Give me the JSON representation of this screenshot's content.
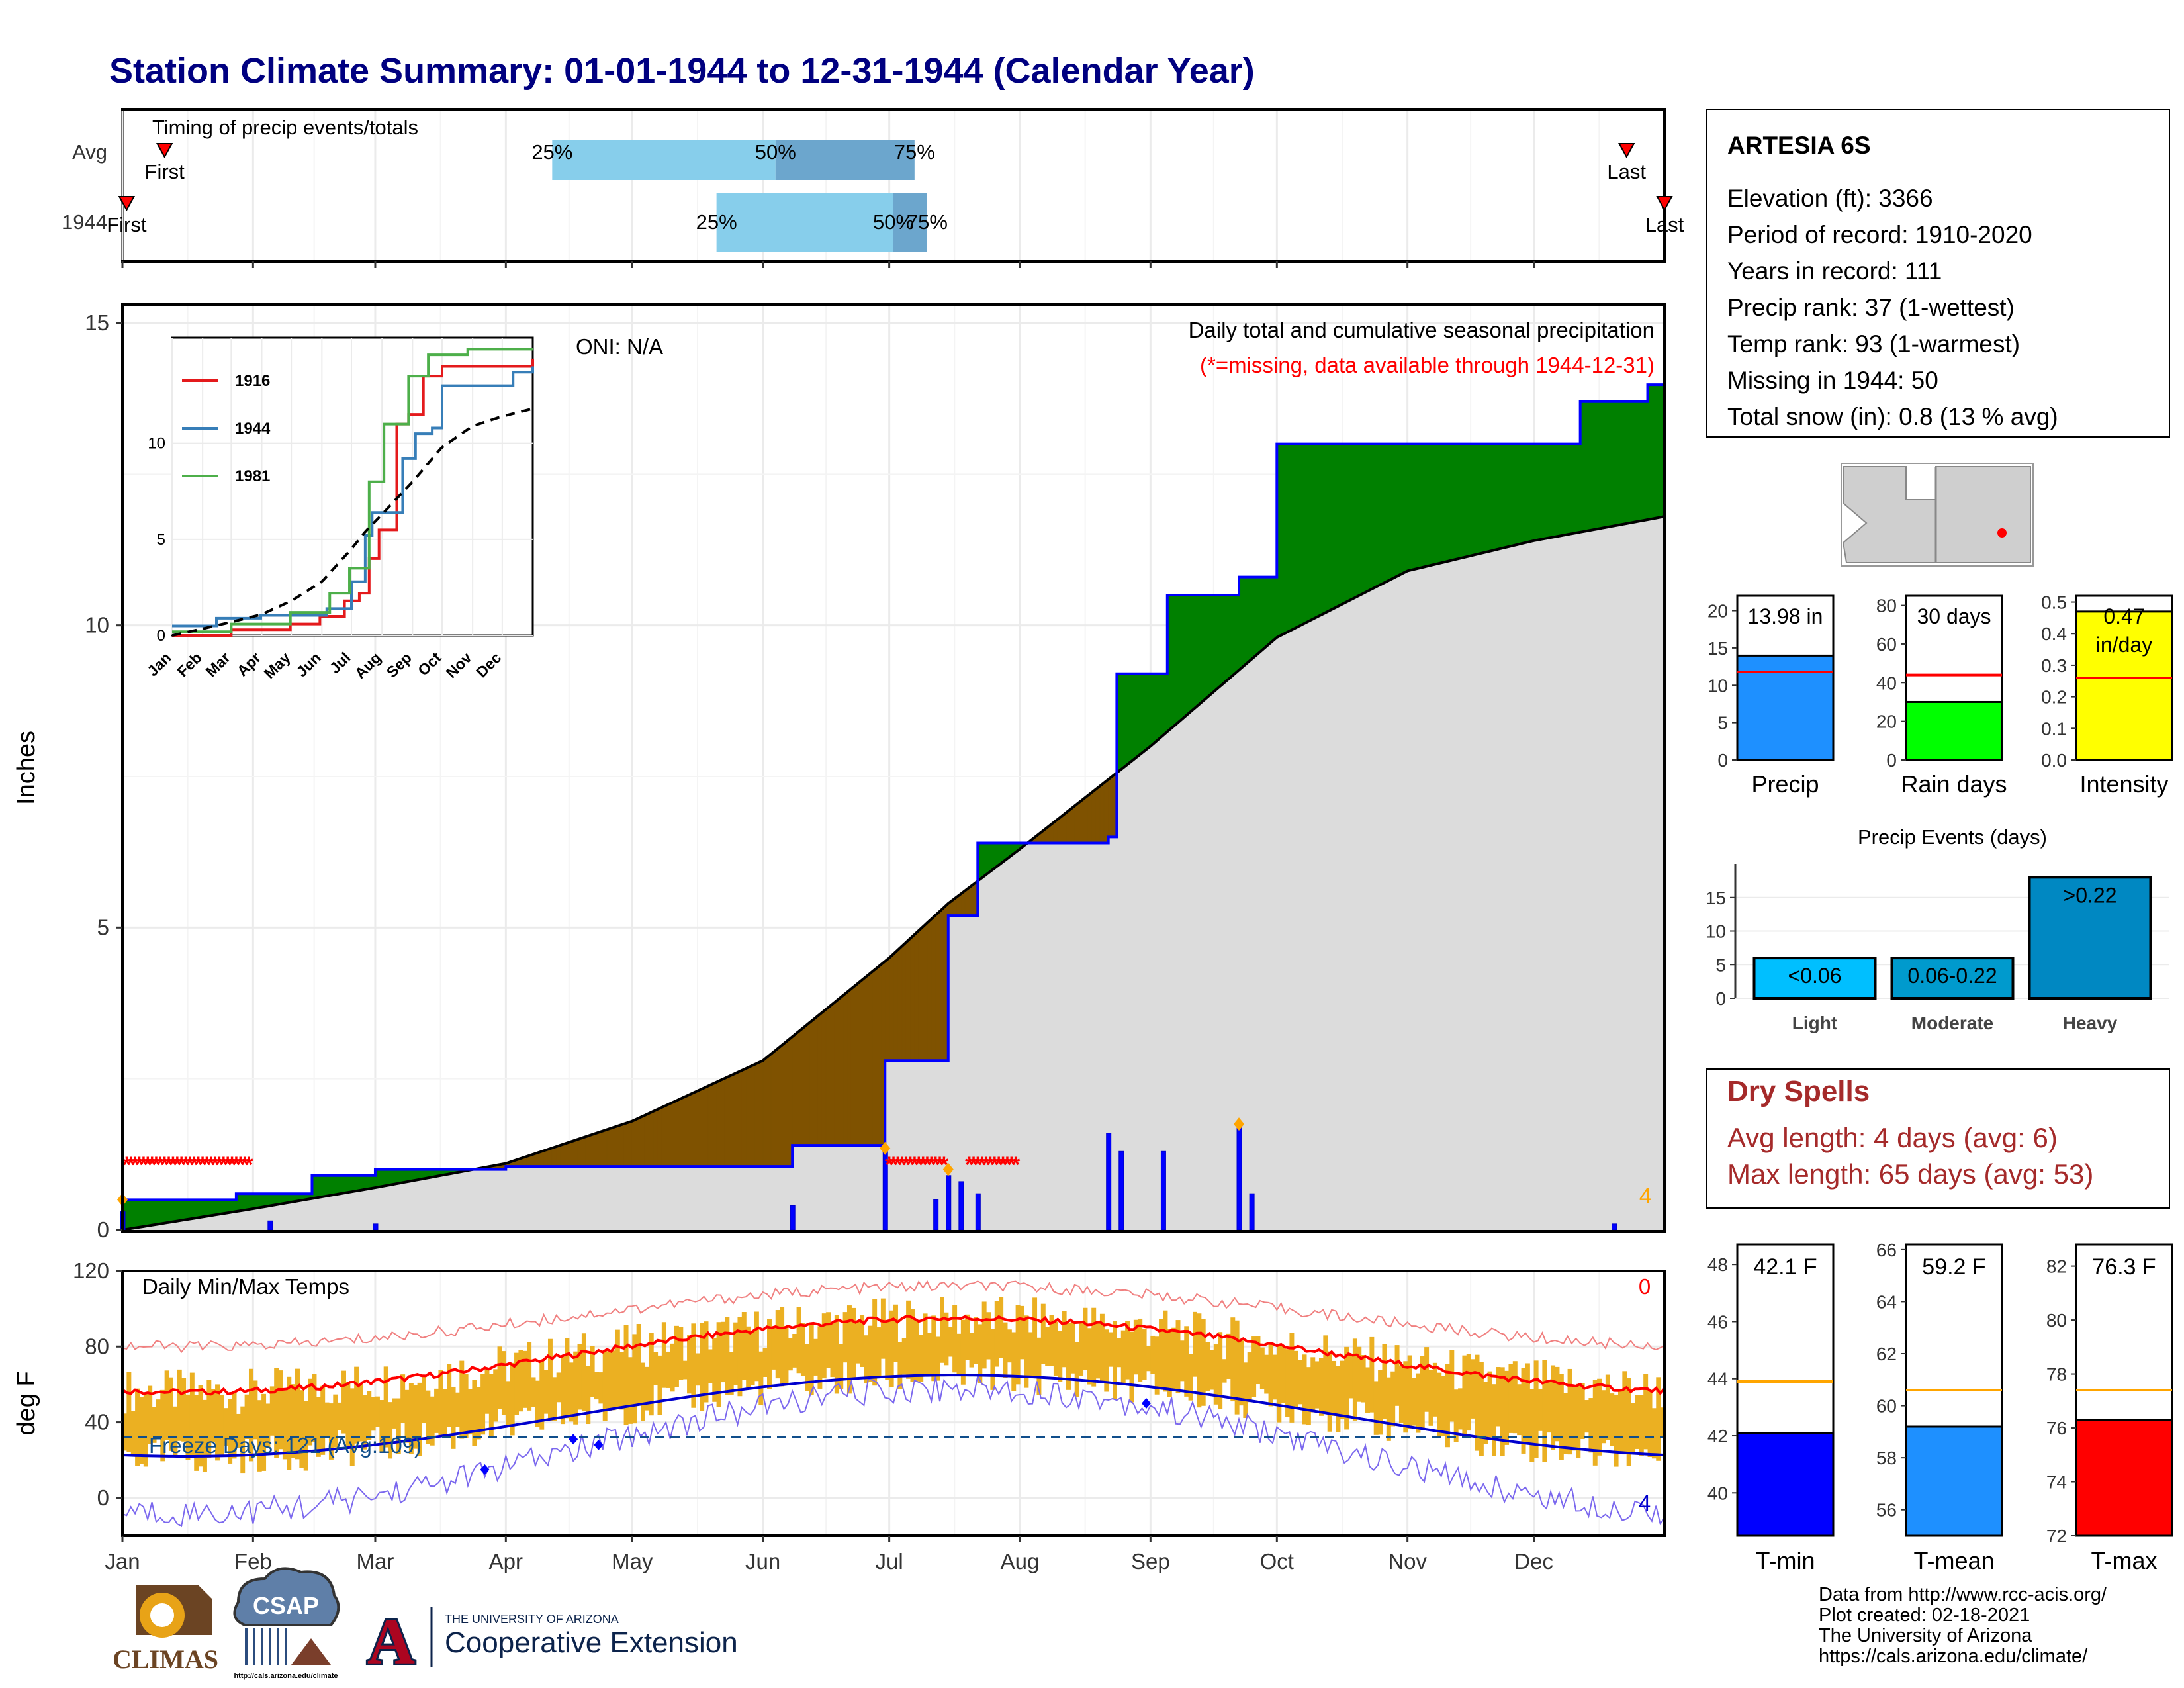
{
  "title": "Station Climate Summary: 01-01-1944 to 12-31-1944 (Calendar Year)",
  "colors": {
    "title": "#000080",
    "above_avg": "#008000",
    "below_avg": "#7F5200",
    "precip_line": "#0000FF",
    "avg_curve": "#000000",
    "normal_fill": "#DCDCDC",
    "missing": "#FF0000",
    "tmax": "#FF0000",
    "tmin": "#0000CD",
    "temp_bar": "#EBB022",
    "dry_spell": "#A52A2A",
    "precip_bar": "#1E90FF",
    "rain_days_bar": "#00FF00",
    "intensity_bar": "#FFFF00",
    "light": "#00BFFF",
    "moderate": "#009ACD",
    "heavy": "#0088C2",
    "ref_line": "#FF0000",
    "temp_ref_line": "#FFA500",
    "tmin_bar": "#0000FF",
    "tmean_bar": "#1E90FF",
    "tmax_bar": "#FF0000"
  },
  "timing": {
    "label": "Timing of precip events/totals",
    "rows": [
      {
        "label": "Avg",
        "first": 10,
        "last": 357,
        "q25": 102,
        "q50": 155,
        "q75": 188
      },
      {
        "label": "1944",
        "first": 1,
        "last": 366,
        "q25": 141,
        "q50": 183,
        "q75": 191
      }
    ],
    "first_label": "First",
    "last_label": "Last",
    "pct_labels": [
      "25%",
      "50%",
      "75%"
    ]
  },
  "precip_panel": {
    "ylabel": "Inches",
    "ylim": [
      0,
      15
    ],
    "yticks": [
      0,
      5,
      10,
      15
    ],
    "oni": "ONI: N/A",
    "subtitle": "Daily total and cumulative seasonal precipitation",
    "missing_note": "(*=missing, data available through 1944-12-31)",
    "extreme_count": "4"
  },
  "inset": {
    "yticks": [
      0,
      5,
      10
    ],
    "months": [
      "Jan",
      "Feb",
      "Mar",
      "Apr",
      "May",
      "Jun",
      "Jul",
      "Aug",
      "Sep",
      "Oct",
      "Nov",
      "Dec"
    ],
    "legend": [
      {
        "name": "1916",
        "color": "#E41A1C"
      },
      {
        "name": "1944",
        "color": "#377EB8"
      },
      {
        "name": "1981",
        "color": "#4DAF4A"
      }
    ]
  },
  "temp_panel": {
    "ylabel": "deg F",
    "ylim": [
      -20,
      120
    ],
    "yticks": [
      0,
      40,
      80,
      120
    ],
    "label": "Daily Min/Max Temps",
    "freeze_label": "Freeze Days: 121 (Avg:109)",
    "hot_count": "0",
    "cold_count": "4",
    "freeze_line": 32
  },
  "months": [
    "Jan",
    "Feb",
    "Mar",
    "Apr",
    "May",
    "Jun",
    "Jul",
    "Aug",
    "Sep",
    "Oct",
    "Nov",
    "Dec"
  ],
  "station": {
    "name": "ARTESIA 6S",
    "lines": [
      "Elevation (ft): 3366",
      "Period of record: 1910-2020",
      "Years in record: 111",
      "Precip rank: 37 (1-wettest)",
      "Temp rank: 93 (1-warmest)",
      "Missing in 1944: 50",
      "Total snow (in): 0.8 (13 % avg)"
    ]
  },
  "summary_bars": [
    {
      "label": "Precip",
      "value_label": "13.98 in",
      "value": 13.98,
      "avg": 11.8,
      "ymax": 22,
      "ticks": [
        0,
        5,
        10,
        15,
        20
      ],
      "color": "#1E90FF"
    },
    {
      "label": "Rain days",
      "value_label": "30 days",
      "value": 30,
      "avg": 44,
      "ymax": 85,
      "ticks": [
        0,
        20,
        40,
        60,
        80
      ],
      "color": "#00FF00"
    },
    {
      "label": "Intensity",
      "value_label": "0.47 in/day",
      "value_line1": "0.47",
      "value_line2": "in/day",
      "value": 0.47,
      "avg": 0.26,
      "ymax": 0.52,
      "ticks": [
        0.0,
        0.1,
        0.2,
        0.3,
        0.4,
        0.5
      ],
      "color": "#FFFF00"
    }
  ],
  "precip_events": {
    "title": "Precip Events (days)",
    "ymax": 20,
    "ticks": [
      0,
      5,
      10,
      15
    ],
    "bars": [
      {
        "category": "Light",
        "label": "<0.06",
        "value": 6,
        "color": "#00BFFF"
      },
      {
        "category": "Moderate",
        "label": "0.06-0.22",
        "value": 6,
        "color": "#009ACD"
      },
      {
        "category": "Heavy",
        "label": ">0.22",
        "value": 18,
        "color": "#0088C2"
      }
    ]
  },
  "dry_spells": {
    "title": "Dry Spells",
    "lines": [
      "Avg length: 4 days (avg: 6)",
      "Max length: 65 days (avg: 53)"
    ]
  },
  "temp_bars": [
    {
      "label": "T-min",
      "value_label": "42.1 F",
      "value": 42.1,
      "avg": 43.9,
      "ymin": 38.5,
      "ymax": 48.7,
      "ticks": [
        40,
        42,
        44,
        46,
        48
      ],
      "color": "#0000FF"
    },
    {
      "label": "T-mean",
      "value_label": "59.2 F",
      "value": 59.2,
      "avg": 60.6,
      "ymin": 55.0,
      "ymax": 66.2,
      "ticks": [
        56,
        58,
        60,
        62,
        64,
        66
      ],
      "color": "#1E90FF"
    },
    {
      "label": "T-max",
      "value_label": "76.3 F",
      "value": 76.3,
      "avg": 77.4,
      "ymin": 72.0,
      "ymax": 82.8,
      "ticks": [
        72,
        74,
        76,
        78,
        80,
        82
      ],
      "color": "#FF0000"
    }
  ],
  "footer": {
    "lines": [
      "Data from http://www.rcc-acis.org/",
      "Plot created: 02-18-2021",
      "The University of Arizona",
      "https://cals.arizona.edu/climate/"
    ],
    "logo_climas": "CLIMAS",
    "logo_csap": "CSAP",
    "logo_csap_url": "http://cals.arizona.edu/climate",
    "ua_line1": "THE UNIVERSITY OF ARIZONA",
    "ua_line2": "Cooperative Extension",
    "ua_letter": "A"
  },
  "chart_data": {
    "type": "area",
    "title": "Station Climate Summary: 01-01-1944 to 12-31-1944 (Calendar Year)",
    "ylabel": "Inches",
    "ylim": [
      0,
      15
    ],
    "observed_cumulative_1944": {
      "x": [
        "01-01",
        "01-28",
        "02-15",
        "03-01",
        "04-01",
        "06-08",
        "06-30",
        "07-15",
        "07-22",
        "08-22",
        "08-24",
        "09-05",
        "09-22",
        "10-01",
        "12-12",
        "12-28"
      ],
      "y": [
        0.5,
        0.6,
        0.9,
        1.0,
        1.05,
        1.4,
        2.8,
        5.2,
        6.4,
        6.5,
        9.2,
        10.5,
        10.8,
        13.0,
        13.7,
        13.98
      ]
    },
    "average_cumulative": {
      "x": [
        "01-01",
        "02-01",
        "03-01",
        "04-01",
        "05-01",
        "06-01",
        "07-01",
        "07-15",
        "08-01",
        "09-01",
        "10-01",
        "11-01",
        "12-01",
        "12-31"
      ],
      "y": [
        0.0,
        0.35,
        0.7,
        1.1,
        1.8,
        2.8,
        4.5,
        5.4,
        6.3,
        8.0,
        9.8,
        10.9,
        11.4,
        11.8
      ]
    },
    "daily_precip": {
      "x": [
        "01-01",
        "02-05",
        "03-01",
        "06-08",
        "06-30",
        "07-12",
        "07-15",
        "07-18",
        "07-22",
        "08-22",
        "08-25",
        "09-04",
        "09-22",
        "09-25",
        "12-20"
      ],
      "y": [
        0.3,
        0.15,
        0.1,
        0.4,
        1.3,
        0.5,
        0.9,
        0.8,
        0.6,
        1.6,
        1.3,
        1.3,
        1.7,
        0.6,
        0.1
      ]
    },
    "missing_periods": [
      [
        "01-02",
        "01-31"
      ],
      [
        "07-01",
        "07-14"
      ],
      [
        "07-20",
        "07-31"
      ]
    ],
    "temperature": {
      "ylabel": "deg F",
      "ylim": [
        -20,
        120
      ],
      "avg_tmax": {
        "x": [
          "01-01",
          "04-01",
          "07-15",
          "10-15",
          "12-31"
        ],
        "y": [
          56,
          75,
          95,
          75,
          57
        ]
      },
      "avg_tmin": {
        "x": [
          "01-01",
          "04-01",
          "07-15",
          "10-15",
          "12-31"
        ],
        "y": [
          23,
          40,
          65,
          42,
          23
        ]
      },
      "freeze_days": 121,
      "freeze_days_avg": 109
    }
  }
}
